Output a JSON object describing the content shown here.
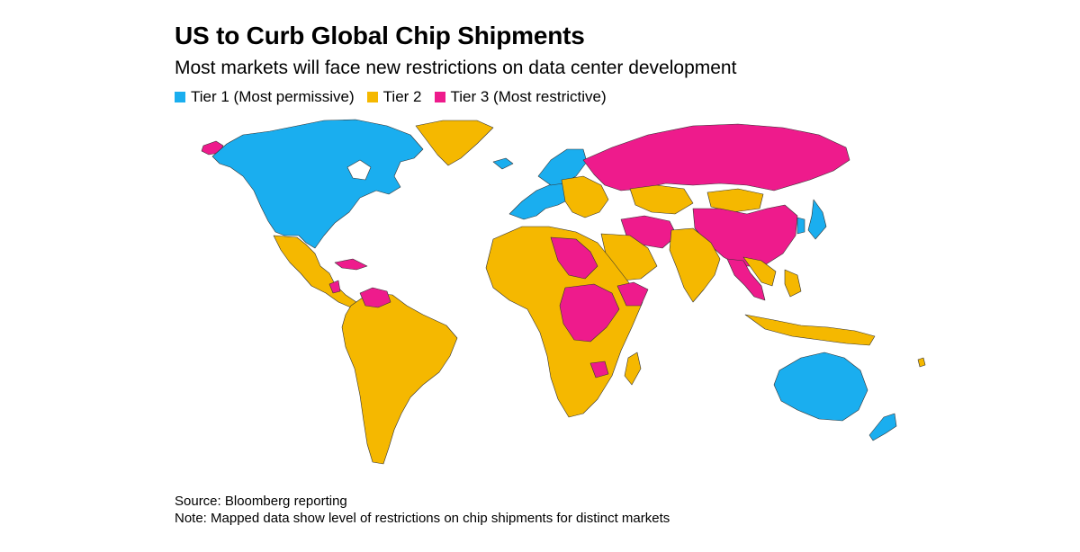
{
  "header": {
    "title": "US to Curb Global Chip Shipments",
    "subtitle": "Most markets will face new restrictions on data center development"
  },
  "legend": [
    {
      "label": "Tier 1 (Most permissive)",
      "color": "#1aaeef"
    },
    {
      "label": "Tier 2",
      "color": "#f5b800"
    },
    {
      "label": "Tier 3 (Most restrictive)",
      "color": "#ee1b8c"
    }
  ],
  "colors": {
    "tier1": "#1aaeef",
    "tier2": "#f5b800",
    "tier3": "#ee1b8c"
  },
  "footer": {
    "source": "Source: Bloomberg reporting",
    "note": "Note: Mapped data show level of restrictions on chip shipments for distinct markets"
  }
}
